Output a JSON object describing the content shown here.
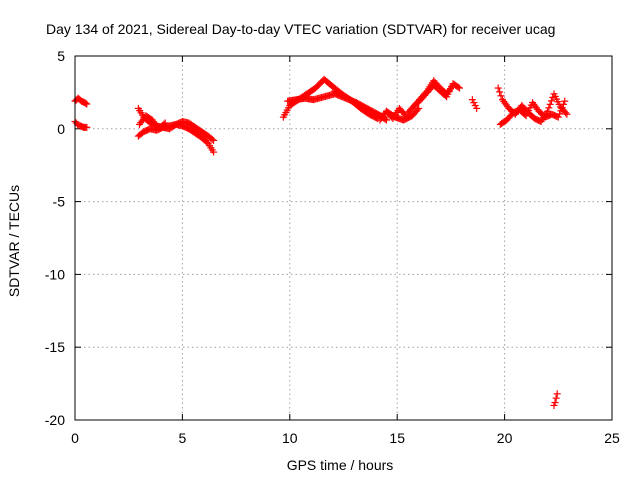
{
  "chart_data": {
    "type": "scatter",
    "title": "Day 134 of 2021, Sidereal Day-to-day VTEC variation (SDTVAR) for receiver ucag",
    "xlabel": "GPS time / hours",
    "ylabel": "SDTVAR / TECUs",
    "xlim": [
      0,
      25
    ],
    "ylim": [
      -20,
      5
    ],
    "xticks": [
      0,
      5,
      10,
      15,
      20,
      25
    ],
    "yticks": [
      5,
      0,
      -5,
      -10,
      -15,
      -20
    ],
    "xtick_labels": [
      "0",
      "5",
      "10",
      "15",
      "20",
      "25"
    ],
    "ytick_labels": [
      "5",
      "0",
      "-5",
      "-10",
      "-15",
      "-20"
    ],
    "grid": true,
    "marker": "plus",
    "color": "#ff0000",
    "series": [
      {
        "name": "SDTVAR",
        "segments": [
          {
            "x": [
              0.0,
              0.15,
              0.3,
              0.45,
              0.55
            ],
            "y": [
              1.9,
              2.1,
              1.9,
              1.8,
              1.7
            ]
          },
          {
            "x": [
              0.0,
              0.12,
              0.25,
              0.4,
              0.55
            ],
            "y": [
              0.5,
              0.3,
              0.2,
              0.1,
              0.1
            ]
          },
          {
            "x": [
              2.95,
              3.2,
              3.5,
              3.8,
              4.1,
              4.4,
              4.7,
              5.0,
              5.3,
              5.6,
              5.9,
              6.2,
              6.45
            ],
            "y": [
              1.4,
              0.8,
              0.4,
              0.2,
              0.1,
              0.2,
              0.3,
              0.2,
              0.0,
              -0.3,
              -0.6,
              -1.0,
              -1.6
            ]
          },
          {
            "x": [
              2.95,
              3.2,
              3.5,
              3.8,
              4.1,
              4.4,
              4.7,
              5.0,
              5.3,
              5.6,
              5.9,
              6.2,
              6.45
            ],
            "y": [
              -0.5,
              -0.2,
              0.0,
              -0.1,
              0.1,
              0.0,
              0.3,
              0.5,
              0.4,
              0.1,
              -0.2,
              -0.5,
              -0.8
            ]
          },
          {
            "x": [
              3.0,
              3.3,
              3.6,
              3.9,
              4.2
            ],
            "y": [
              0.3,
              0.9,
              0.6,
              0.0,
              0.4
            ]
          },
          {
            "x": [
              9.7,
              10.0,
              10.4,
              10.8,
              11.2,
              11.6,
              12.0,
              12.5,
              13.0,
              13.5,
              14.0,
              14.4
            ],
            "y": [
              0.8,
              1.6,
              2.0,
              2.4,
              2.8,
              3.4,
              2.9,
              2.3,
              1.8,
              1.4,
              1.0,
              0.8
            ]
          },
          {
            "x": [
              9.9,
              10.3,
              10.7,
              11.1,
              11.6,
              12.1,
              12.6,
              13.1,
              13.6,
              14.1,
              14.5
            ],
            "y": [
              1.9,
              2.0,
              2.1,
              2.0,
              2.2,
              2.4,
              2.1,
              1.8,
              1.4,
              1.0,
              0.6
            ]
          },
          {
            "x": [
              12.1,
              12.5,
              12.9,
              13.3,
              13.7,
              14.1
            ],
            "y": [
              2.6,
              2.3,
              1.9,
              1.4,
              1.0,
              0.7
            ]
          },
          {
            "x": [
              14.2,
              14.5,
              14.8,
              15.1,
              15.4
            ],
            "y": [
              0.6,
              1.2,
              0.7,
              1.4,
              0.9
            ]
          },
          {
            "x": [
              14.5,
              14.9,
              15.3,
              15.7,
              16.0
            ],
            "y": [
              1.2,
              0.8,
              0.6,
              0.9,
              1.4
            ]
          },
          {
            "x": [
              15.5,
              15.8,
              16.1,
              16.4,
              16.7,
              17.0,
              17.3,
              17.6,
              17.9
            ],
            "y": [
              1.1,
              1.6,
              2.0,
              2.5,
              3.0,
              2.6,
              2.2,
              3.1,
              2.8
            ]
          },
          {
            "x": [
              15.8,
              16.1,
              16.4,
              16.7,
              17.0,
              17.3,
              17.6
            ],
            "y": [
              1.6,
              2.1,
              2.6,
              3.3,
              2.8,
              2.4,
              3.0
            ]
          },
          {
            "x": [
              18.5,
              18.7
            ],
            "y": [
              2.0,
              1.4
            ]
          },
          {
            "x": [
              19.7,
              19.9,
              20.2,
              20.5,
              20.8,
              21.1,
              21.4,
              21.7,
              22.0,
              22.3,
              22.6,
              22.9
            ],
            "y": [
              2.8,
              2.0,
              1.4,
              1.0,
              1.6,
              1.1,
              0.7,
              0.5,
              1.2,
              2.4,
              1.5,
              1.0
            ]
          },
          {
            "x": [
              19.8,
              20.1,
              20.4,
              20.7,
              21.0,
              21.3,
              21.6,
              21.9,
              22.2,
              22.5,
              22.8
            ],
            "y": [
              0.3,
              0.6,
              1.1,
              1.3,
              0.9,
              1.8,
              1.2,
              0.8,
              1.0,
              0.8,
              1.9
            ]
          },
          {
            "x": [
              22.3,
              22.35,
              22.4,
              22.45
            ],
            "y": [
              -19.0,
              -18.8,
              -18.5,
              -18.2
            ]
          }
        ]
      }
    ]
  }
}
